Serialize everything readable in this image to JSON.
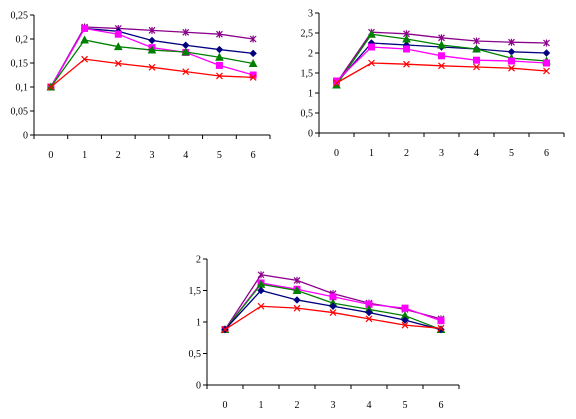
{
  "chart_data": [
    {
      "type": "line",
      "title": "",
      "xlabel": "",
      "ylabel": "",
      "grid": false,
      "x": [
        0,
        1,
        2,
        3,
        4,
        5,
        6
      ],
      "x_tick_labels": [
        "0",
        "1",
        "2",
        "3",
        "4",
        "5",
        "6"
      ],
      "ylim": [
        0,
        0.25
      ],
      "y_ticks": [
        0,
        0.05,
        0.1,
        0.15,
        0.2,
        0.25
      ],
      "y_tick_labels": [
        "0",
        "0,05",
        "0,1",
        "0,15",
        "0,2",
        "0,25"
      ],
      "series": [
        {
          "color": "#8B008B",
          "marker": "star",
          "values": [
            0.1,
            0.225,
            0.222,
            0.218,
            0.214,
            0.21,
            0.2
          ]
        },
        {
          "color": "#000080",
          "marker": "diamond",
          "values": [
            0.1,
            0.222,
            0.216,
            0.197,
            0.187,
            0.178,
            0.17
          ]
        },
        {
          "color": "#FF00FF",
          "marker": "square",
          "values": [
            0.1,
            0.222,
            0.21,
            0.182,
            0.172,
            0.145,
            0.125
          ]
        },
        {
          "color": "#008000",
          "marker": "triangle",
          "values": [
            0.1,
            0.198,
            0.184,
            0.177,
            0.173,
            0.162,
            0.149
          ]
        },
        {
          "color": "#FF0000",
          "marker": "x",
          "values": [
            0.1,
            0.158,
            0.149,
            0.141,
            0.132,
            0.123,
            0.12
          ]
        }
      ]
    },
    {
      "type": "line",
      "title": "",
      "xlabel": "",
      "ylabel": "",
      "grid": false,
      "x": [
        0,
        1,
        2,
        3,
        4,
        5,
        6
      ],
      "x_tick_labels": [
        "0",
        "1",
        "2",
        "3",
        "4",
        "5",
        "6"
      ],
      "ylim": [
        0,
        3
      ],
      "y_ticks": [
        0,
        0.5,
        1,
        1.5,
        2,
        2.5,
        3
      ],
      "y_tick_labels": [
        "0",
        "0,5",
        "1",
        "1,5",
        "2",
        "2,5",
        "3"
      ],
      "series": [
        {
          "color": "#8B008B",
          "marker": "star",
          "values": [
            1.25,
            2.52,
            2.48,
            2.38,
            2.3,
            2.27,
            2.25
          ]
        },
        {
          "color": "#000080",
          "marker": "diamond",
          "values": [
            1.25,
            2.25,
            2.2,
            2.15,
            2.1,
            2.03,
            2.0
          ]
        },
        {
          "color": "#008000",
          "marker": "triangle",
          "values": [
            1.2,
            2.47,
            2.35,
            2.2,
            2.1,
            1.87,
            1.8
          ]
        },
        {
          "color": "#FF00FF",
          "marker": "square",
          "values": [
            1.3,
            2.15,
            2.1,
            1.93,
            1.82,
            1.8,
            1.75
          ]
        },
        {
          "color": "#FF0000",
          "marker": "x",
          "values": [
            1.25,
            1.75,
            1.72,
            1.68,
            1.65,
            1.62,
            1.55
          ]
        }
      ]
    },
    {
      "type": "line",
      "title": "",
      "xlabel": "",
      "ylabel": "",
      "grid": false,
      "x": [
        0,
        1,
        2,
        3,
        4,
        5,
        6
      ],
      "x_tick_labels": [
        "0",
        "1",
        "2",
        "3",
        "4",
        "5",
        "6"
      ],
      "ylim": [
        0,
        2
      ],
      "y_ticks": [
        0,
        0.5,
        1,
        1.5,
        2
      ],
      "y_tick_labels": [
        "0",
        "0,5",
        "1",
        "1,5",
        "2"
      ],
      "series": [
        {
          "color": "#8B008B",
          "marker": "star",
          "values": [
            0.88,
            1.75,
            1.66,
            1.45,
            1.3,
            1.2,
            1.05
          ]
        },
        {
          "color": "#FF00FF",
          "marker": "square",
          "values": [
            0.88,
            1.62,
            1.52,
            1.4,
            1.28,
            1.22,
            1.02
          ]
        },
        {
          "color": "#008000",
          "marker": "triangle",
          "values": [
            0.88,
            1.6,
            1.5,
            1.3,
            1.2,
            1.1,
            0.88
          ]
        },
        {
          "color": "#000080",
          "marker": "diamond",
          "values": [
            0.88,
            1.5,
            1.35,
            1.25,
            1.15,
            1.03,
            0.88
          ]
        },
        {
          "color": "#FF0000",
          "marker": "x",
          "values": [
            0.88,
            1.25,
            1.22,
            1.15,
            1.05,
            0.95,
            0.9
          ]
        }
      ]
    }
  ]
}
